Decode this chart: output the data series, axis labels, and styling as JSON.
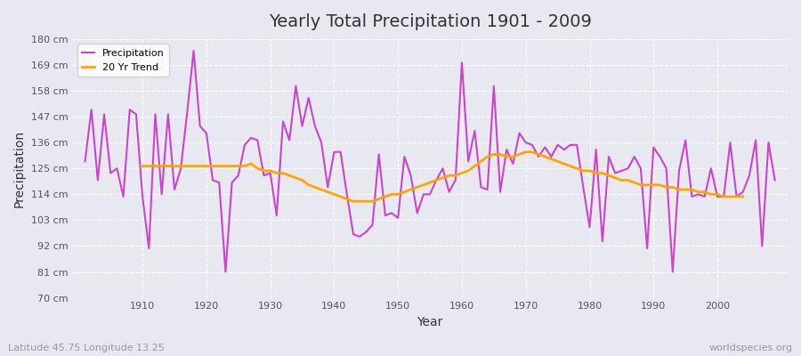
{
  "title": "Yearly Total Precipitation 1901 - 2009",
  "xlabel": "Year",
  "ylabel": "Precipitation",
  "subtitle_left": "Latitude 45.75 Longitude 13.25",
  "subtitle_right": "worldspecies.org",
  "line_color": "#CC44CC",
  "trend_color": "#FFA500",
  "background_color": "#E8E8F0",
  "plot_bg_color": "#E8E8F0",
  "ylim": [
    70,
    180
  ],
  "yticks": [
    70,
    81,
    92,
    103,
    114,
    125,
    136,
    147,
    158,
    169,
    180
  ],
  "ytick_labels": [
    "70 cm",
    "81 cm",
    "92 cm",
    "103 cm",
    "114 cm",
    "125 cm",
    "136 cm",
    "147 cm",
    "158 cm",
    "169 cm",
    "180 cm"
  ],
  "years": [
    1901,
    1902,
    1903,
    1904,
    1905,
    1906,
    1907,
    1908,
    1909,
    1910,
    1911,
    1912,
    1913,
    1914,
    1915,
    1916,
    1917,
    1918,
    1919,
    1920,
    1921,
    1922,
    1923,
    1924,
    1925,
    1926,
    1927,
    1928,
    1929,
    1930,
    1931,
    1932,
    1933,
    1934,
    1935,
    1936,
    1937,
    1938,
    1939,
    1940,
    1941,
    1942,
    1943,
    1944,
    1945,
    1946,
    1947,
    1948,
    1949,
    1950,
    1951,
    1952,
    1953,
    1954,
    1955,
    1956,
    1957,
    1958,
    1959,
    1960,
    1961,
    1962,
    1963,
    1964,
    1965,
    1966,
    1967,
    1968,
    1969,
    1970,
    1971,
    1972,
    1973,
    1974,
    1975,
    1976,
    1977,
    1978,
    1979,
    1980,
    1981,
    1982,
    1983,
    1984,
    1985,
    1986,
    1987,
    1988,
    1989,
    1990,
    1991,
    1992,
    1993,
    1994,
    1995,
    1996,
    1997,
    1998,
    1999,
    2000,
    2001,
    2002,
    2003,
    2004,
    2005,
    2006,
    2007,
    2008,
    2009
  ],
  "precipitation": [
    128,
    150,
    120,
    148,
    123,
    125,
    113,
    150,
    148,
    113,
    91,
    148,
    114,
    148,
    116,
    125,
    149,
    175,
    143,
    140,
    120,
    119,
    81,
    119,
    122,
    135,
    138,
    137,
    122,
    123,
    105,
    145,
    137,
    160,
    143,
    155,
    143,
    136,
    117,
    132,
    132,
    114,
    97,
    96,
    98,
    101,
    131,
    105,
    106,
    104,
    130,
    122,
    106,
    114,
    114,
    120,
    125,
    115,
    120,
    170,
    128,
    141,
    117,
    116,
    160,
    115,
    133,
    127,
    140,
    136,
    135,
    130,
    134,
    130,
    135,
    133,
    135,
    135,
    117,
    100,
    133,
    94,
    130,
    123,
    124,
    125,
    130,
    125,
    91,
    134,
    130,
    125,
    81,
    124,
    137,
    113,
    114,
    113,
    125,
    113,
    113,
    136,
    113,
    115,
    122,
    137,
    92,
    136,
    120
  ],
  "trend": [
    null,
    null,
    null,
    null,
    null,
    null,
    null,
    null,
    null,
    126,
    126,
    126,
    126,
    126,
    126,
    126,
    126,
    126,
    126,
    126,
    126,
    126,
    126,
    126,
    126,
    126,
    127,
    125,
    124,
    124,
    123,
    123,
    122,
    121,
    120,
    118,
    117,
    116,
    115,
    114,
    113,
    112,
    111,
    111,
    111,
    111,
    112,
    113,
    114,
    114,
    115,
    116,
    117,
    118,
    119,
    120,
    121,
    122,
    122,
    123,
    124,
    126,
    128,
    130,
    131,
    131,
    130,
    130,
    131,
    132,
    132,
    131,
    130,
    129,
    128,
    127,
    126,
    125,
    124,
    124,
    123,
    123,
    122,
    121,
    120,
    120,
    119,
    118,
    118,
    118,
    118,
    117,
    117,
    116,
    116,
    116,
    115,
    115,
    114,
    114,
    113,
    113,
    113,
    113,
    null,
    null,
    null,
    null,
    null
  ]
}
